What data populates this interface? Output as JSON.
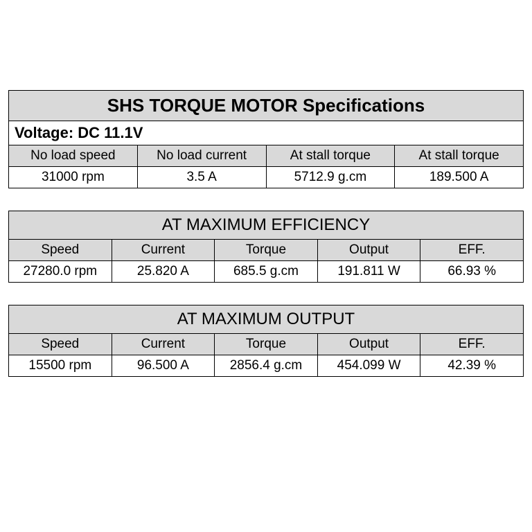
{
  "main": {
    "title": "SHS TORQUE MOTOR Specifications",
    "voltage_label": "Voltage:  DC 11.1V",
    "headers": [
      "No load speed",
      "No load current",
      "At stall torque",
      "At stall torque"
    ],
    "values": [
      "31000 rpm",
      "3.5 A",
      "5712.9 g.cm",
      "189.500 A"
    ]
  },
  "efficiency": {
    "title": "AT MAXIMUM EFFICIENCY",
    "headers": [
      "Speed",
      "Current",
      "Torque",
      "Output",
      "EFF."
    ],
    "values": [
      "27280.0 rpm",
      "25.820 A",
      "685.5 g.cm",
      "191.811 W",
      "66.93 %"
    ]
  },
  "output": {
    "title": "AT MAXIMUM OUTPUT",
    "headers": [
      "Speed",
      "Current",
      "Torque",
      "Output",
      "EFF."
    ],
    "values": [
      "15500 rpm",
      "96.500 A",
      "2856.4 g.cm",
      "454.099 W",
      "42.39 %"
    ]
  },
  "style": {
    "header_bg": "#d9d9d9",
    "data_bg": "#ffffff",
    "border_color": "#000000",
    "title_fontsize": 26,
    "section_fontsize": 24,
    "cell_fontsize": 19,
    "font_family": "Arial"
  }
}
